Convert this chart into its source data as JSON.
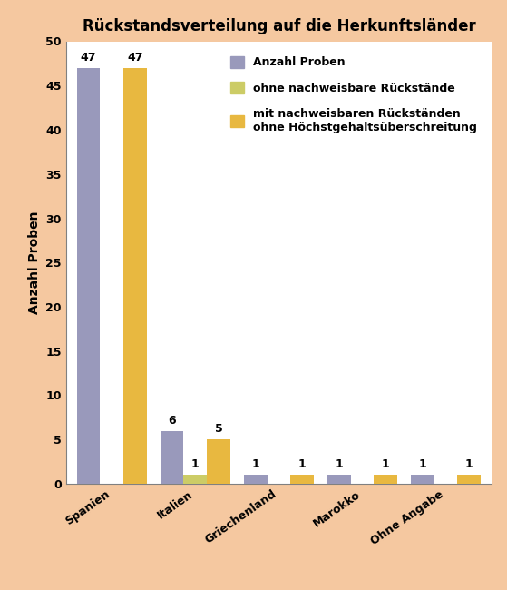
{
  "title": "Rückstandsverteilung auf die Herkunftsländer",
  "ylabel": "Anzahl Proben",
  "categories": [
    "Spanien",
    "Italien",
    "Griechenland",
    "Marokko",
    "Ohne Angabe"
  ],
  "series": {
    "Anzahl Proben": [
      47,
      6,
      1,
      1,
      1
    ],
    "ohne nachweisbare Rückstände": [
      0,
      1,
      0,
      0,
      0
    ],
    "mit nachweisbaren Rückständen\nohne Höchstgehaltsüberschreitung": [
      47,
      5,
      1,
      1,
      1
    ]
  },
  "colors": {
    "Anzahl Proben": "#9999bb",
    "ohne nachweisbare Rückstände": "#cccc66",
    "mit nachweisbaren Rückständen\nohne Höchstgehaltsüberschreitung": "#e8b840"
  },
  "bar_labels": {
    "Anzahl Proben": [
      47,
      6,
      1,
      1,
      1
    ],
    "ohne nachweisbare Rückstände": [
      null,
      1,
      null,
      null,
      null
    ],
    "mit nachweisbaren Rückständen\nohne Höchstgehaltsüberschreitung": [
      47,
      5,
      1,
      1,
      1
    ]
  },
  "ylim": [
    0,
    50
  ],
  "yticks": [
    0,
    5,
    10,
    15,
    20,
    25,
    30,
    35,
    40,
    45,
    50
  ],
  "background_color": "#f5c8a0",
  "plot_background": "#ffffff",
  "title_fontsize": 12,
  "axis_fontsize": 10,
  "tick_fontsize": 9,
  "bar_width": 0.28,
  "legend_fontsize": 9
}
